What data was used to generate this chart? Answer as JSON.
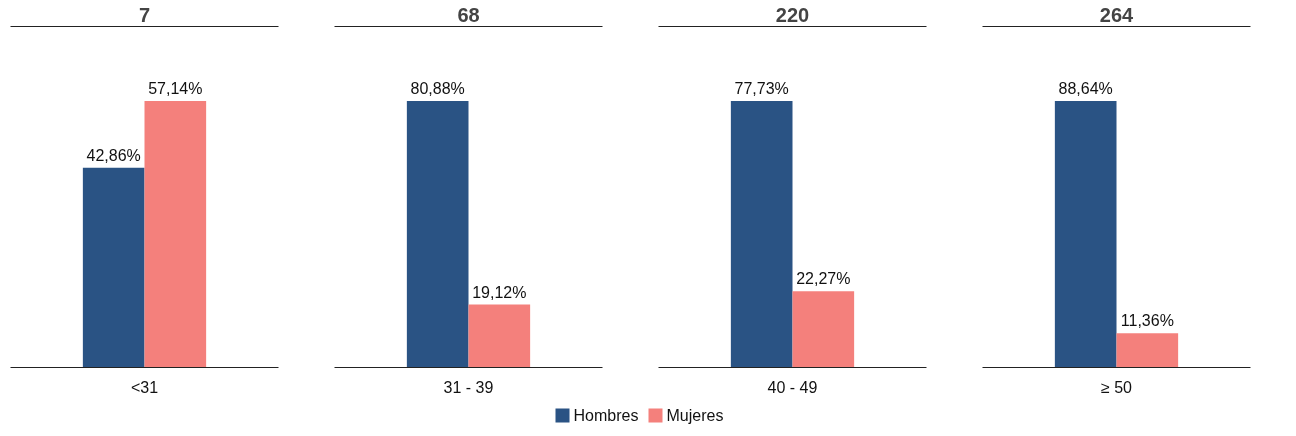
{
  "chart_data": [
    {
      "type": "bar",
      "title": "7",
      "categories": [
        "<31"
      ],
      "legend": "bottom",
      "series": [
        {
          "name": "Hombres",
          "color": "#2a5384",
          "values": [
            42.86
          ],
          "value_labels": [
            "42,86%"
          ]
        },
        {
          "name": "Mujeres",
          "color": "#f4807c",
          "values": [
            57.14
          ],
          "value_labels": [
            "57,14%"
          ]
        }
      ]
    },
    {
      "type": "bar",
      "title": "68",
      "categories": [
        "31 - 39"
      ],
      "legend": "bottom",
      "series": [
        {
          "name": "Hombres",
          "color": "#2a5384",
          "values": [
            80.88
          ],
          "value_labels": [
            "80,88%"
          ]
        },
        {
          "name": "Mujeres",
          "color": "#f4807c",
          "values": [
            19.12
          ],
          "value_labels": [
            "19,12%"
          ]
        }
      ]
    },
    {
      "type": "bar",
      "title": "220",
      "categories": [
        "40 - 49"
      ],
      "legend": "bottom",
      "series": [
        {
          "name": "Hombres",
          "color": "#2a5384",
          "values": [
            77.73
          ],
          "value_labels": [
            "77,73%"
          ]
        },
        {
          "name": "Mujeres",
          "color": "#f4807c",
          "values": [
            22.27
          ],
          "value_labels": [
            "22,27%"
          ]
        }
      ]
    },
    {
      "type": "bar",
      "title": "264",
      "categories": [
        "≥ 50"
      ],
      "legend": "bottom",
      "series": [
        {
          "name": "Hombres",
          "color": "#2a5384",
          "values": [
            88.64
          ],
          "value_labels": [
            "88,64%"
          ]
        },
        {
          "name": "Mujeres",
          "color": "#f4807c",
          "values": [
            11.36
          ],
          "value_labels": [
            "11,36%"
          ]
        }
      ]
    }
  ]
}
